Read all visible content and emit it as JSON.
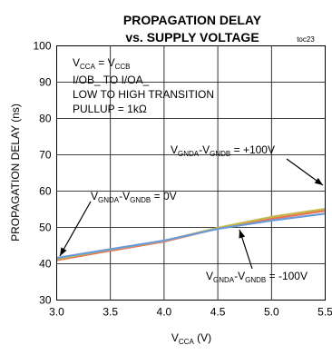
{
  "chart_data": {
    "type": "line",
    "title": "PROPAGATION DELAY",
    "subtitle": "vs. SUPPLY VOLTAGE",
    "figure_id": "toc23",
    "xlabel": {
      "base": "V",
      "sub": "CCA",
      "suffix": " (V)"
    },
    "ylabel": "PROPAGATION DELAY (ns)",
    "xlim": [
      3.0,
      5.5
    ],
    "ylim": [
      30,
      100
    ],
    "xticks": [
      "3.0",
      "3.5",
      "4.0",
      "4.5",
      "5.0",
      "5.5"
    ],
    "yticks": [
      "30",
      "40",
      "50",
      "60",
      "70",
      "80",
      "90",
      "100"
    ],
    "grid": true,
    "conditions": {
      "vcc": {
        "v1": "V",
        "s1": "CCA",
        "mid": " = V",
        "s2": "CCB"
      },
      "line2": "I/OB_ TO I/OA_",
      "line3": "LOW TO HIGH TRANSITION",
      "line4": "PULLUP = 1kΩ"
    },
    "series": [
      {
        "color": "#e8705a",
        "x": [
          3.0,
          3.5,
          4.0,
          4.5,
          5.0,
          5.5
        ],
        "y": [
          41.0,
          43.6,
          46.1,
          49.7,
          52.4,
          54.6
        ]
      },
      {
        "color": "#c7b74a",
        "x": [
          3.0,
          3.5,
          4.0,
          4.5,
          5.0,
          5.5
        ],
        "y": [
          41.3,
          43.9,
          46.3,
          49.9,
          52.9,
          55.1
        ]
      },
      {
        "color": "#6a9bd8",
        "x": [
          3.0,
          3.5,
          4.0,
          4.5,
          5.0,
          5.5
        ],
        "y": [
          41.6,
          44.0,
          46.4,
          49.6,
          51.9,
          53.8
        ]
      }
    ],
    "annotations": [
      {
        "v": "V",
        "s1": "GNDA",
        "dash": "-V",
        "s2": "GNDB",
        "tail": " = +100V"
      },
      {
        "v": "V",
        "s1": "GNDA",
        "dash": "-V",
        "s2": "GNDB",
        "tail": " = 0V"
      },
      {
        "v": "V",
        "s1": "GNDA",
        "dash": "-V",
        "s2": "GNDB",
        "tail": " = -100V"
      }
    ]
  }
}
